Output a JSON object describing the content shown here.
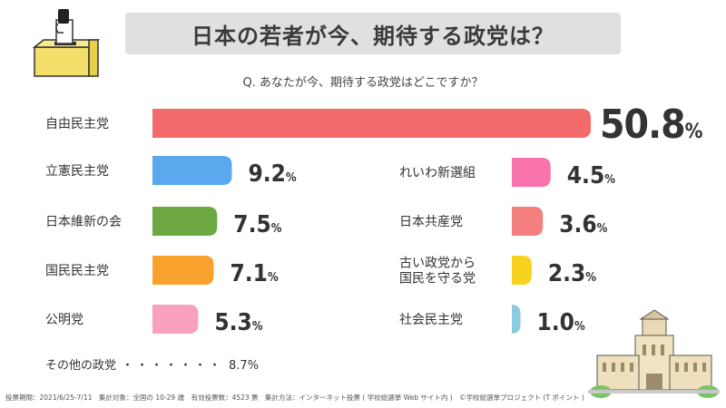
{
  "title": "日本の若者が今、期待する政党は？",
  "question": "Q. あなたが今、期待する政党はどこですか？",
  "other": {
    "label": "その他の政党",
    "dots": "・・・・・・・",
    "value": "8.7%"
  },
  "footer": "投票期間：2021/6/25-7/11　集計対象：全国の 10-29 歳　有効投票数：4523 票　集計方法：インターネット投票 ( 学校総選挙 Web サイト内 )　©学校総選挙プロジェクト (T ポイント )",
  "chart_data": {
    "type": "bar",
    "orientation": "horizontal",
    "unit": "%",
    "categories": [
      "自由民主党",
      "立憲民主党",
      "日本維新の会",
      "国民民主党",
      "公明党",
      "れいわ新選組",
      "日本共産党",
      "古い政党から\n国民を守る党",
      "社会民主党"
    ],
    "values": [
      50.8,
      9.2,
      7.5,
      7.1,
      5.3,
      4.5,
      3.6,
      2.3,
      1.0
    ],
    "colors": [
      "#f36a6a",
      "#5ba8ef",
      "#6ea843",
      "#f9a12d",
      "#f8a1bc",
      "#f974ab",
      "#f47f7f",
      "#f7d31f",
      "#8bcbe0"
    ],
    "others": {
      "label": "その他の政党",
      "value": 8.7
    }
  }
}
